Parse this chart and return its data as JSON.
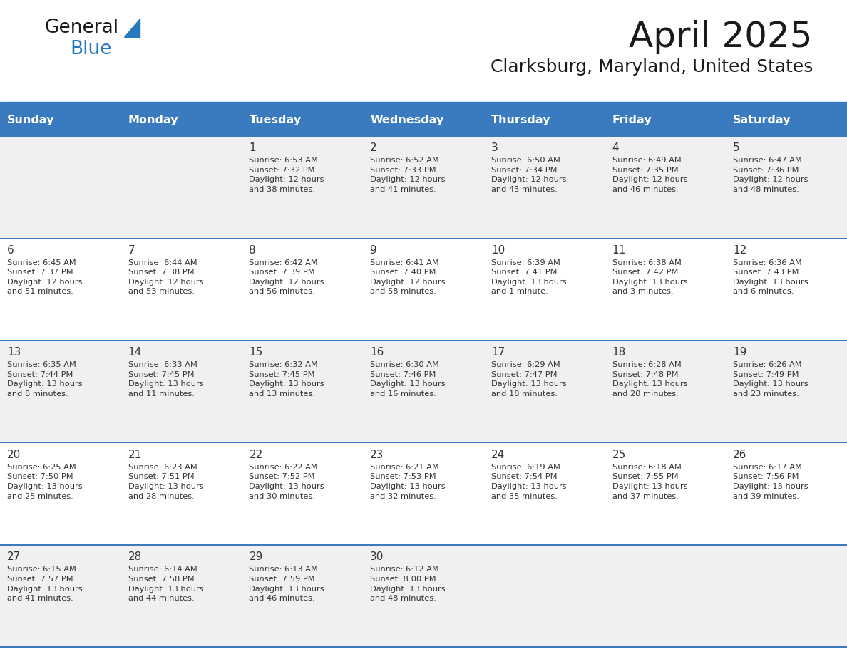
{
  "title": "April 2025",
  "subtitle": "Clarksburg, Maryland, United States",
  "header_bg": "#3a7bbf",
  "header_text_color": "#ffffff",
  "odd_row_bg": "#f0f0f0",
  "even_row_bg": "#ffffff",
  "border_color": "#3a7bbf",
  "days_of_week": [
    "Sunday",
    "Monday",
    "Tuesday",
    "Wednesday",
    "Thursday",
    "Friday",
    "Saturday"
  ],
  "cell_text_color": "#333333",
  "logo_blue": "#2878c0",
  "calendar": [
    [
      "",
      "",
      "1\nSunrise: 6:53 AM\nSunset: 7:32 PM\nDaylight: 12 hours\nand 38 minutes.",
      "2\nSunrise: 6:52 AM\nSunset: 7:33 PM\nDaylight: 12 hours\nand 41 minutes.",
      "3\nSunrise: 6:50 AM\nSunset: 7:34 PM\nDaylight: 12 hours\nand 43 minutes.",
      "4\nSunrise: 6:49 AM\nSunset: 7:35 PM\nDaylight: 12 hours\nand 46 minutes.",
      "5\nSunrise: 6:47 AM\nSunset: 7:36 PM\nDaylight: 12 hours\nand 48 minutes."
    ],
    [
      "6\nSunrise: 6:45 AM\nSunset: 7:37 PM\nDaylight: 12 hours\nand 51 minutes.",
      "7\nSunrise: 6:44 AM\nSunset: 7:38 PM\nDaylight: 12 hours\nand 53 minutes.",
      "8\nSunrise: 6:42 AM\nSunset: 7:39 PM\nDaylight: 12 hours\nand 56 minutes.",
      "9\nSunrise: 6:41 AM\nSunset: 7:40 PM\nDaylight: 12 hours\nand 58 minutes.",
      "10\nSunrise: 6:39 AM\nSunset: 7:41 PM\nDaylight: 13 hours\nand 1 minute.",
      "11\nSunrise: 6:38 AM\nSunset: 7:42 PM\nDaylight: 13 hours\nand 3 minutes.",
      "12\nSunrise: 6:36 AM\nSunset: 7:43 PM\nDaylight: 13 hours\nand 6 minutes."
    ],
    [
      "13\nSunrise: 6:35 AM\nSunset: 7:44 PM\nDaylight: 13 hours\nand 8 minutes.",
      "14\nSunrise: 6:33 AM\nSunset: 7:45 PM\nDaylight: 13 hours\nand 11 minutes.",
      "15\nSunrise: 6:32 AM\nSunset: 7:45 PM\nDaylight: 13 hours\nand 13 minutes.",
      "16\nSunrise: 6:30 AM\nSunset: 7:46 PM\nDaylight: 13 hours\nand 16 minutes.",
      "17\nSunrise: 6:29 AM\nSunset: 7:47 PM\nDaylight: 13 hours\nand 18 minutes.",
      "18\nSunrise: 6:28 AM\nSunset: 7:48 PM\nDaylight: 13 hours\nand 20 minutes.",
      "19\nSunrise: 6:26 AM\nSunset: 7:49 PM\nDaylight: 13 hours\nand 23 minutes."
    ],
    [
      "20\nSunrise: 6:25 AM\nSunset: 7:50 PM\nDaylight: 13 hours\nand 25 minutes.",
      "21\nSunrise: 6:23 AM\nSunset: 7:51 PM\nDaylight: 13 hours\nand 28 minutes.",
      "22\nSunrise: 6:22 AM\nSunset: 7:52 PM\nDaylight: 13 hours\nand 30 minutes.",
      "23\nSunrise: 6:21 AM\nSunset: 7:53 PM\nDaylight: 13 hours\nand 32 minutes.",
      "24\nSunrise: 6:19 AM\nSunset: 7:54 PM\nDaylight: 13 hours\nand 35 minutes.",
      "25\nSunrise: 6:18 AM\nSunset: 7:55 PM\nDaylight: 13 hours\nand 37 minutes.",
      "26\nSunrise: 6:17 AM\nSunset: 7:56 PM\nDaylight: 13 hours\nand 39 minutes."
    ],
    [
      "27\nSunrise: 6:15 AM\nSunset: 7:57 PM\nDaylight: 13 hours\nand 41 minutes.",
      "28\nSunrise: 6:14 AM\nSunset: 7:58 PM\nDaylight: 13 hours\nand 44 minutes.",
      "29\nSunrise: 6:13 AM\nSunset: 7:59 PM\nDaylight: 13 hours\nand 46 minutes.",
      "30\nSunrise: 6:12 AM\nSunset: 8:00 PM\nDaylight: 13 hours\nand 48 minutes.",
      "",
      "",
      ""
    ]
  ]
}
